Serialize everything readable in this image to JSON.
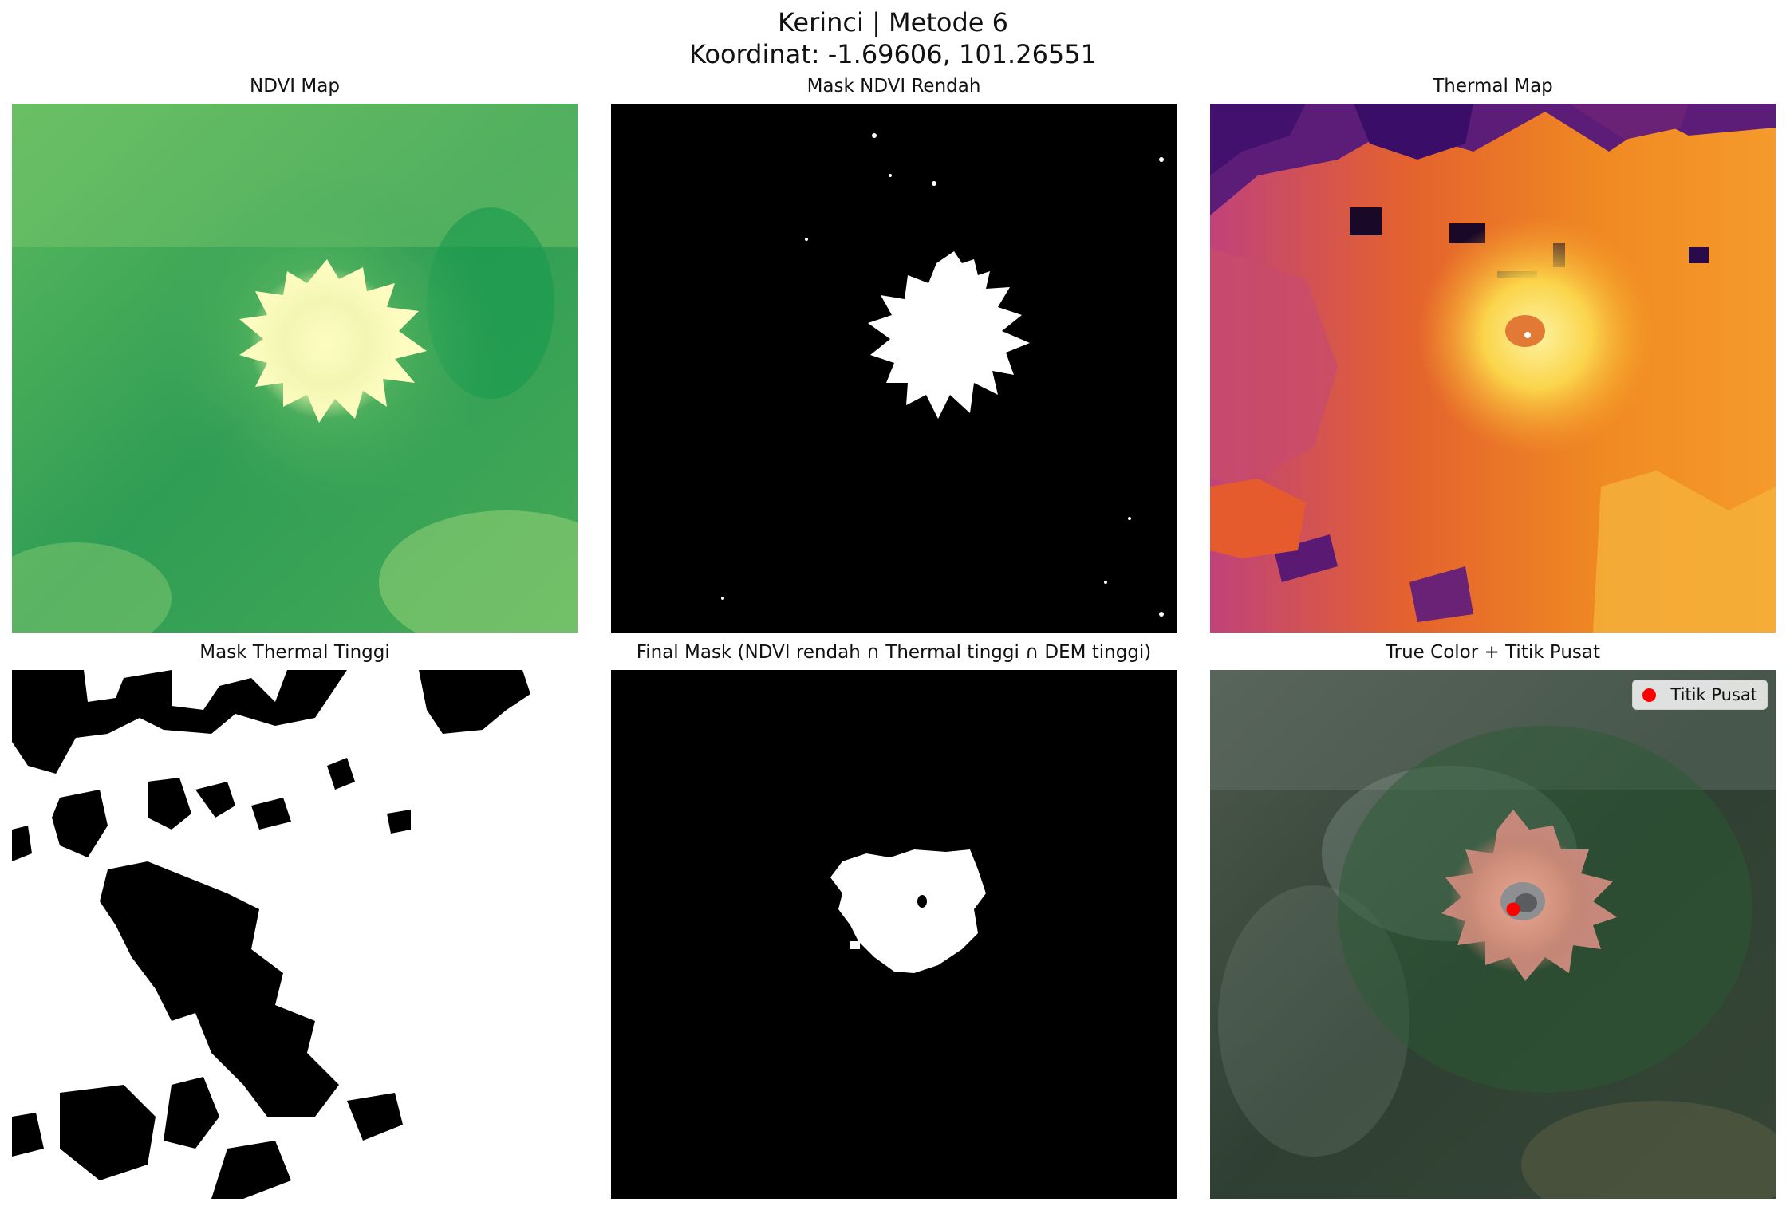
{
  "figure": {
    "title_line1": "Kerinci | Metode 6",
    "title_line2": "Koordinat: -1.69606, 101.26551"
  },
  "panels": [
    {
      "title": "NDVI Map",
      "image": "ndvi-green-map"
    },
    {
      "title": "Mask NDVI Rendah",
      "image": "binary-mask-summit"
    },
    {
      "title": "Thermal Map",
      "image": "thermal-inferno-map"
    },
    {
      "title": "Mask Thermal Tinggi",
      "image": "binary-mask-thermal"
    },
    {
      "title": "Final Mask (NDVI rendah ∩ Thermal tinggi ∩ DEM tinggi)",
      "image": "binary-mask-final"
    },
    {
      "title": "True Color + Titik Pusat",
      "image": "true-color-volcano"
    }
  ],
  "legend": {
    "label": "Titik Pusat",
    "marker_color": "#ff0000"
  },
  "colors": {
    "ndvi_low": "#fefcbc",
    "ndvi_high": "#189c4e",
    "thermal_low": "#3d0d6a",
    "thermal_high": "#fbe55c",
    "mask_on": "#ffffff",
    "mask_off": "#000000"
  }
}
